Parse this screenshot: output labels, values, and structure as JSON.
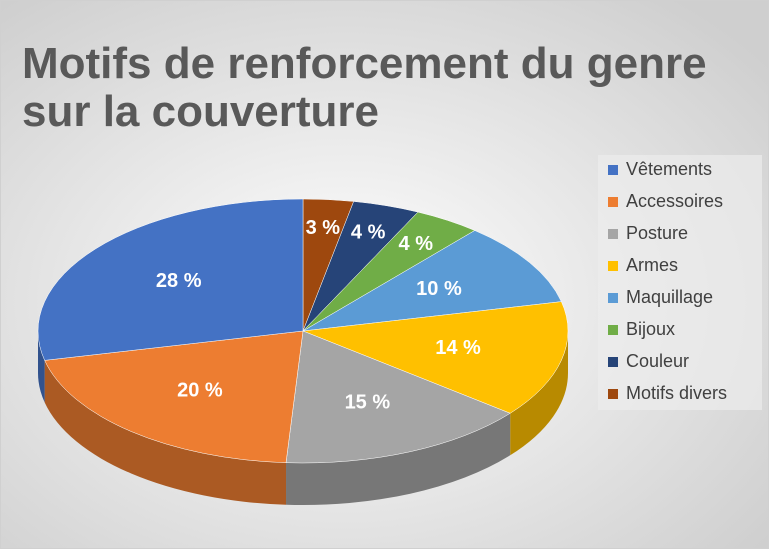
{
  "chart_data": {
    "type": "pie3d",
    "title": "Motifs de renforcement du genre sur la couverture",
    "categories": [
      "Vêtements",
      "Accessoires",
      "Posture",
      "Armes",
      "Maquillage",
      "Bijoux",
      "Couleur",
      "Motifs divers"
    ],
    "values": [
      28,
      20,
      15,
      14,
      10,
      4,
      4,
      3
    ],
    "value_labels": [
      "28 %",
      "20 %",
      "15 %",
      "14 %",
      "10 %",
      "4 %",
      "4 %",
      "3 %"
    ],
    "colors": [
      "#4472c4",
      "#ed7d31",
      "#a5a5a5",
      "#ffc000",
      "#5b9bd5",
      "#70ad47",
      "#264478",
      "#9e480e"
    ],
    "legend": "right"
  }
}
